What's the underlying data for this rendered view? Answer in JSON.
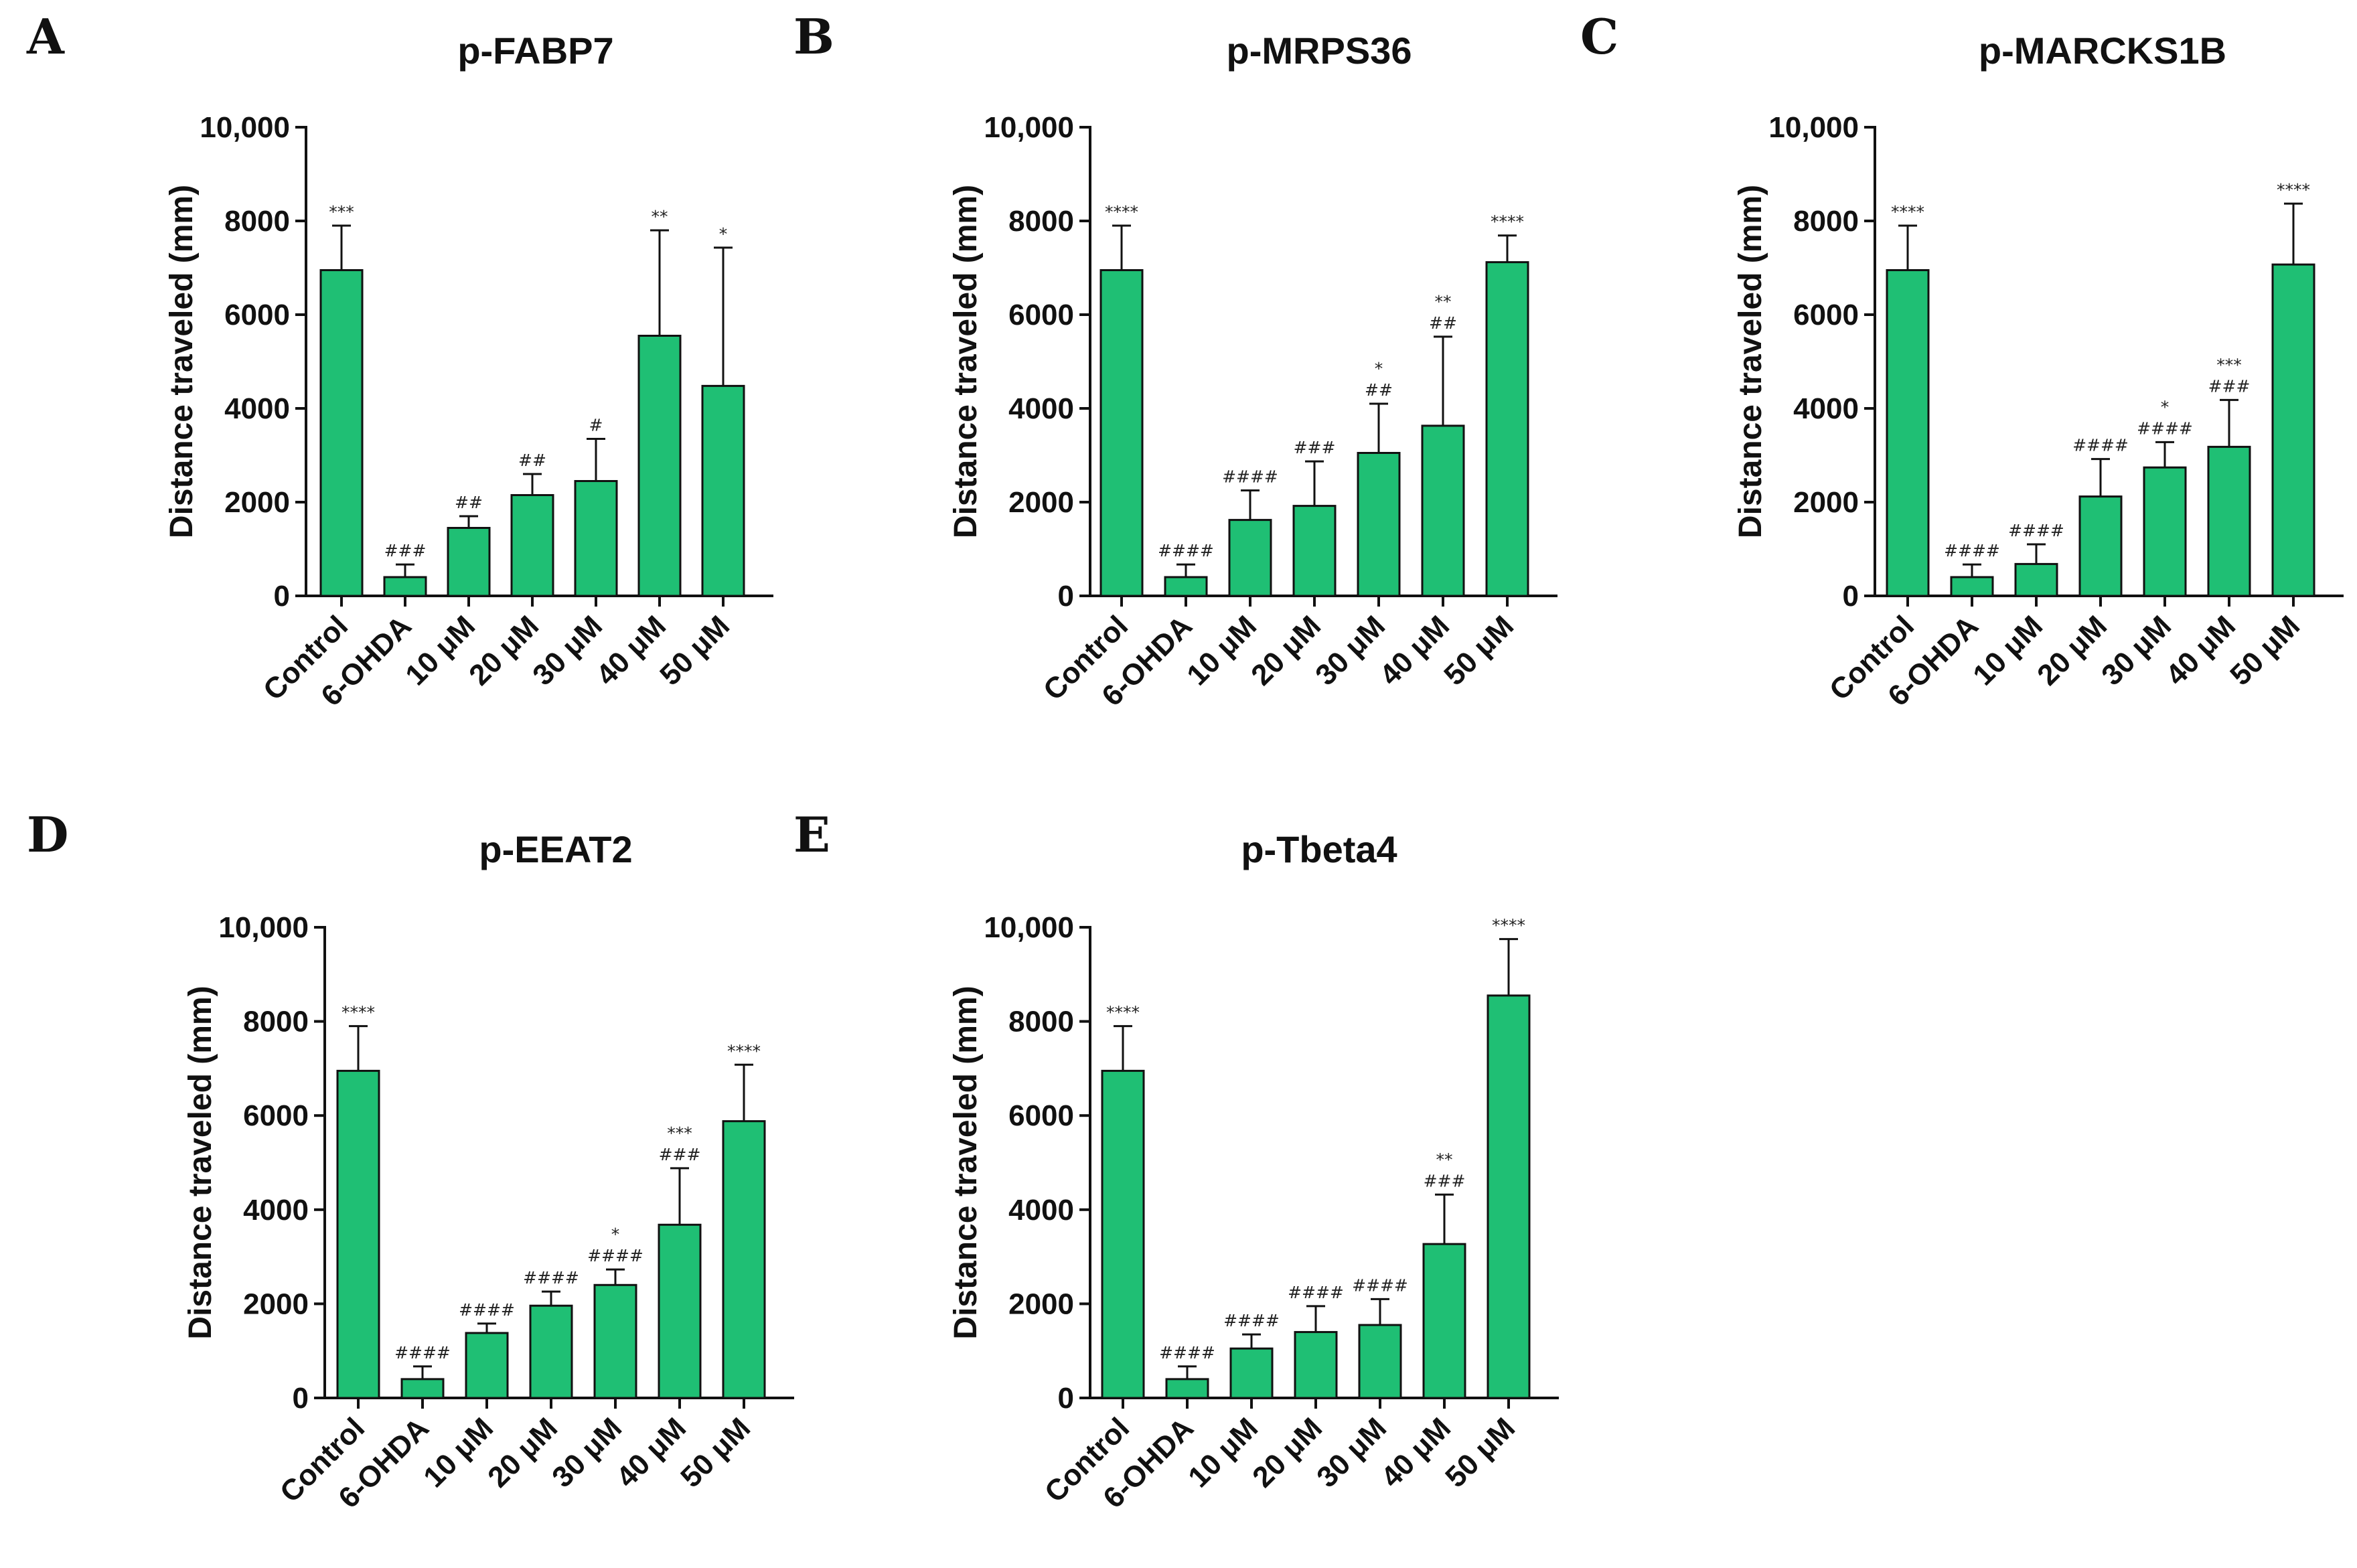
{
  "colors": {
    "bar_fill": "#1fbf74",
    "ink": "#111111"
  },
  "chart_data": [
    {
      "panel": "A",
      "type": "bar",
      "title": "p-FABP7",
      "ylabel": "Distance traveled (mm)",
      "ylim": [
        0,
        10000
      ],
      "yticks": [
        0,
        2000,
        4000,
        6000,
        8000,
        10000
      ],
      "ytick_labels": [
        "0",
        "2000",
        "4000",
        "6000",
        "8000",
        "10,000"
      ],
      "categories": [
        "Control",
        "6-OHDA",
        "10 μM",
        "20 μM",
        "30 μM",
        "40 μM",
        "50 μM"
      ],
      "values": [
        6950,
        400,
        1450,
        2150,
        2450,
        5550,
        4480
      ],
      "errors": [
        950,
        270,
        250,
        450,
        900,
        2250,
        2950
      ],
      "annotations": [
        [
          "***"
        ],
        [
          "###"
        ],
        [
          "##"
        ],
        [
          "##"
        ],
        [
          "#"
        ],
        [
          "**"
        ],
        [
          "*"
        ]
      ]
    },
    {
      "panel": "B",
      "type": "bar",
      "title": "p-MRPS36",
      "ylabel": "Distance traveled (mm)",
      "ylim": [
        0,
        10000
      ],
      "yticks": [
        0,
        2000,
        4000,
        6000,
        8000,
        10000
      ],
      "ytick_labels": [
        "0",
        "2000",
        "4000",
        "6000",
        "8000",
        "10,000"
      ],
      "categories": [
        "Control",
        "6-OHDA",
        "10 μM",
        "20 μM",
        "30 μM",
        "40 μM",
        "50 μM"
      ],
      "values": [
        6950,
        400,
        1620,
        1920,
        3050,
        3630,
        7120
      ],
      "errors": [
        950,
        270,
        630,
        950,
        1050,
        1900,
        570
      ],
      "annotations": [
        [
          "****"
        ],
        [
          "####"
        ],
        [
          "####"
        ],
        [
          "###"
        ],
        [
          "*",
          "##"
        ],
        [
          "**",
          "##"
        ],
        [
          "****"
        ]
      ]
    },
    {
      "panel": "C",
      "type": "bar",
      "title": "p-MARCKS1B",
      "ylabel": "Distance traveled (mm)",
      "ylim": [
        0,
        10000
      ],
      "yticks": [
        0,
        2000,
        4000,
        6000,
        8000,
        10000
      ],
      "ytick_labels": [
        "0",
        "2000",
        "4000",
        "6000",
        "8000",
        "10,000"
      ],
      "categories": [
        "Control",
        "6-OHDA",
        "10 μM",
        "20 μM",
        "30 μM",
        "40 μM",
        "50 μM"
      ],
      "values": [
        6950,
        400,
        680,
        2120,
        2740,
        3180,
        7070
      ],
      "errors": [
        950,
        270,
        420,
        800,
        540,
        1000,
        1300
      ],
      "annotations": [
        [
          "****"
        ],
        [
          "####"
        ],
        [
          "####"
        ],
        [
          "####"
        ],
        [
          "*",
          "####"
        ],
        [
          "***",
          "###"
        ],
        [
          "****"
        ]
      ]
    },
    {
      "panel": "D",
      "type": "bar",
      "title": "p-EEAT2",
      "ylabel": "Distance traveled (mm)",
      "ylim": [
        0,
        10000
      ],
      "yticks": [
        0,
        2000,
        4000,
        6000,
        8000,
        10000
      ],
      "ytick_labels": [
        "0",
        "2000",
        "4000",
        "6000",
        "8000",
        "10,000"
      ],
      "categories": [
        "Control",
        "6-OHDA",
        "10 μM",
        "20 μM",
        "30 μM",
        "40 μM",
        "50 μM"
      ],
      "values": [
        6950,
        400,
        1380,
        1960,
        2400,
        3680,
        5880
      ],
      "errors": [
        950,
        270,
        200,
        300,
        330,
        1200,
        1200
      ],
      "annotations": [
        [
          "****"
        ],
        [
          "####"
        ],
        [
          "####"
        ],
        [
          "####"
        ],
        [
          "*",
          "####"
        ],
        [
          "***",
          "###"
        ],
        [
          "****"
        ]
      ]
    },
    {
      "panel": "E",
      "type": "bar",
      "title": "p-Tbeta4",
      "ylabel": "Distance traveled (mm)",
      "ylim": [
        0,
        10000
      ],
      "yticks": [
        0,
        2000,
        4000,
        6000,
        8000,
        10000
      ],
      "ytick_labels": [
        "0",
        "2000",
        "4000",
        "6000",
        "8000",
        "10,000"
      ],
      "categories": [
        "Control",
        "6-OHDA",
        "10 μM",
        "20 μM",
        "30 μM",
        "40 μM",
        "50 μM"
      ],
      "values": [
        6950,
        400,
        1050,
        1400,
        1550,
        3270,
        8550
      ],
      "errors": [
        950,
        270,
        300,
        550,
        550,
        1050,
        1200
      ],
      "annotations": [
        [
          "****"
        ],
        [
          "####"
        ],
        [
          "####"
        ],
        [
          "####"
        ],
        [
          "####"
        ],
        [
          "**",
          "###"
        ],
        [
          "****"
        ]
      ]
    }
  ]
}
